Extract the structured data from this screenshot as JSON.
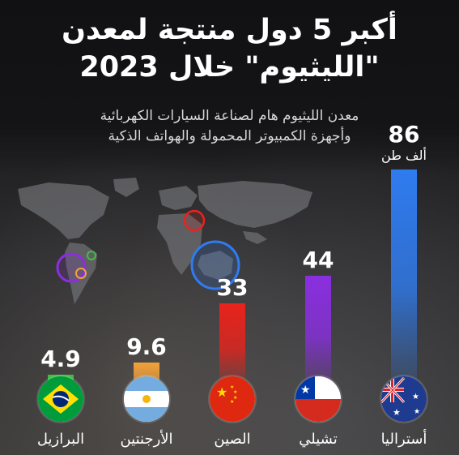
{
  "title_line1": "أكبر 5 دول منتجة لمعدن",
  "title_line2": "\"الليثيوم\" خلال 2023",
  "subtitle_line1": "معدن الليثيوم هام لصناعة السيارات الكهربائية",
  "subtitle_line2": "وأجهزة الكمبيوتر المحمولة والهواتف الذكية",
  "colors": {
    "australia": "#2f7cf0",
    "chile": "#8a2fe0",
    "china": "#e8231c",
    "argentina": "#f3a23a",
    "brazil": "#3ec13e"
  },
  "chart_data": {
    "type": "bar",
    "title": "أكبر 5 دول منتجة لمعدن \"الليثيوم\" خلال 2023",
    "unit_label": "ألف طن",
    "categories": [
      "أستراليا",
      "تشيلي",
      "الصين",
      "الأرجنتين",
      "البرازيل"
    ],
    "values": [
      86,
      44,
      33,
      9.6,
      4.9
    ],
    "value_labels": [
      "86",
      "44",
      "33",
      "9.6",
      "4.9"
    ],
    "ylim": [
      0,
      86
    ],
    "grid": false,
    "legend": "none"
  }
}
